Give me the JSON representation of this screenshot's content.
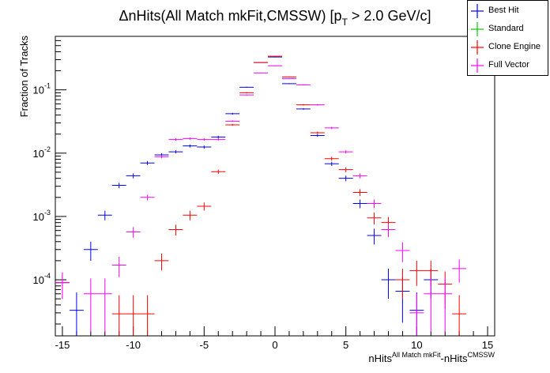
{
  "title_text": "ΔnHits(All Match mkFit,CMSSW) [p",
  "title_sub": "T",
  "title_rest": " > 2.0 GeV/c]",
  "ylabel": "Fraction of Tracks",
  "xlabel_main": "nHits",
  "xlabel_sup1": "All Match mkFit",
  "xlabel_mid": "-nHits",
  "xlabel_sup2": "CMSSW",
  "chart_data": {
    "type": "scatter",
    "title": "ΔnHits(All Match mkFit,CMSSW) [pT > 2.0 GeV/c]",
    "xlabel": "nHits^{All Match mkFit}-nHits^{CMSSW}",
    "ylabel": "Fraction of Tracks",
    "xlim": [
      -15.5,
      15.5
    ],
    "ylim": [
      1.3e-05,
      0.7
    ],
    "yscale": "log",
    "x_ticks": [
      -15,
      -10,
      -5,
      0,
      5,
      10,
      15
    ],
    "x_tick_labels": [
      "-15",
      "-10",
      "-5",
      "0",
      "5",
      "10",
      "15"
    ],
    "y_ticks": [
      0.0001,
      0.001,
      0.01,
      0.1
    ],
    "y_tick_labels": [
      [
        "10",
        "-4"
      ],
      [
        "10",
        "-3"
      ],
      [
        "10",
        "-2"
      ],
      [
        "10",
        "-1"
      ]
    ],
    "legend_position": "top-right",
    "series": [
      {
        "name": "Best Hit",
        "color": "#0000ff",
        "points": [
          [
            -15,
            9e-05,
            4e-05
          ],
          [
            -14,
            3.3e-05,
            3e-05
          ],
          [
            -13,
            0.0003,
            0.0001
          ],
          [
            -12,
            0.00105,
            0.00018
          ],
          [
            -11,
            0.0031,
            0.0003
          ],
          [
            -10,
            0.0044,
            0.0004
          ],
          [
            -9,
            0.007,
            0.0005
          ],
          [
            -8,
            0.0094,
            0.0006
          ],
          [
            -7,
            0.0105,
            0.0006
          ],
          [
            -6,
            0.013,
            0.0007
          ],
          [
            -5,
            0.0125,
            0.0007
          ],
          [
            -4,
            0.018,
            0.0008
          ],
          [
            -3,
            0.042,
            0.0013
          ],
          [
            -2,
            0.11,
            0.002
          ],
          [
            -1,
            0.27,
            0.003
          ],
          [
            0,
            0.33,
            0.004
          ],
          [
            1,
            0.125,
            0.002
          ],
          [
            2,
            0.05,
            0.0014
          ],
          [
            3,
            0.019,
            0.0009
          ],
          [
            4,
            0.0068,
            0.0005
          ],
          [
            5,
            0.004,
            0.0004
          ],
          [
            6,
            0.0016,
            0.00025
          ],
          [
            7,
            0.0005,
            0.00014
          ],
          [
            8,
            0.0001,
            5e-05
          ],
          [
            9,
            6.6e-05,
            4.5e-05
          ],
          [
            10,
            3.3e-05,
            3e-05
          ],
          [
            11,
            0.0001,
            5e-05
          ]
        ]
      },
      {
        "name": "Standard",
        "color": "#00cc00",
        "points": []
      },
      {
        "name": "Clone Engine",
        "color": "#ff0000",
        "points": [
          [
            -15,
            9e-05,
            4e-05
          ],
          [
            -11,
            2.9e-05,
            2.8e-05
          ],
          [
            -10,
            2.9e-05,
            2.8e-05
          ],
          [
            -9,
            2.9e-05,
            2.8e-05
          ],
          [
            -8,
            0.0002,
            6e-05
          ],
          [
            -7,
            0.00062,
            0.00012
          ],
          [
            -6,
            0.00105,
            0.00018
          ],
          [
            -5,
            0.00145,
            0.00021
          ],
          [
            -4,
            0.0051,
            0.0004
          ],
          [
            -3,
            0.028,
            0.001
          ],
          [
            -2,
            0.09,
            0.002
          ],
          [
            -1,
            0.27,
            0.003
          ],
          [
            0,
            0.34,
            0.004
          ],
          [
            1,
            0.16,
            0.0025
          ],
          [
            2,
            0.058,
            0.0015
          ],
          [
            3,
            0.021,
            0.0009
          ],
          [
            4,
            0.0082,
            0.0006
          ],
          [
            5,
            0.0055,
            0.0005
          ],
          [
            6,
            0.0024,
            0.0003
          ],
          [
            7,
            0.00095,
            0.0002
          ],
          [
            8,
            0.0008,
            0.00018
          ],
          [
            9,
            0.0001,
            5e-05
          ],
          [
            10,
            0.00014,
            6e-05
          ],
          [
            11,
            0.00014,
            6e-05
          ],
          [
            12,
            8.5e-05,
            5e-05
          ],
          [
            13,
            2.9e-05,
            2.8e-05
          ]
        ]
      },
      {
        "name": "Full Vector",
        "color": "#ff00ff",
        "points": [
          [
            -15,
            9e-05,
            4e-05
          ],
          [
            -13,
            6e-05,
            4.5e-05
          ],
          [
            -12,
            6e-05,
            4.5e-05
          ],
          [
            -11,
            0.00017,
            6e-05
          ],
          [
            -10,
            0.00057,
            0.00011
          ],
          [
            -9,
            0.002,
            0.0002
          ],
          [
            -8,
            0.0088,
            0.0005
          ],
          [
            -7,
            0.0165,
            0.0007
          ],
          [
            -6,
            0.017,
            0.0007
          ],
          [
            -5,
            0.0165,
            0.0007
          ],
          [
            -4,
            0.0165,
            0.0007
          ],
          [
            -3,
            0.032,
            0.001
          ],
          [
            -2,
            0.083,
            0.0017
          ],
          [
            -1,
            0.185,
            0.0025
          ],
          [
            0,
            0.24,
            0.003
          ],
          [
            1,
            0.15,
            0.0024
          ],
          [
            2,
            0.12,
            0.0021
          ],
          [
            3,
            0.058,
            0.0015
          ],
          [
            4,
            0.025,
            0.001
          ],
          [
            5,
            0.0105,
            0.0006
          ],
          [
            6,
            0.0044,
            0.0004
          ],
          [
            7,
            0.0016,
            0.00025
          ],
          [
            8,
            0.00062,
            0.00015
          ],
          [
            9,
            0.00029,
            0.0001
          ],
          [
            10,
            3e-05,
            3e-05
          ],
          [
            11,
            6e-05,
            4.5e-05
          ],
          [
            12,
            6e-05,
            4.5e-05
          ],
          [
            13,
            0.00015,
            6e-05
          ]
        ]
      }
    ]
  }
}
